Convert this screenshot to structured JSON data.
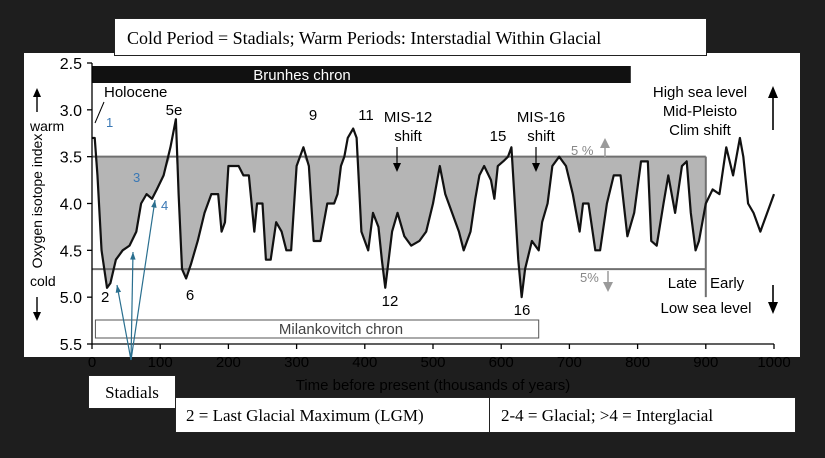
{
  "callouts": {
    "title": "Cold Period = Stadials; Warm Periods: Interstadial Within Glacial",
    "stadials": "Stadials",
    "lgm": "2 = Last Glacial Maximum (LGM)",
    "glacial": "2-4 = Glacial; >4 = Interglacial"
  },
  "colors": {
    "background": "#1e1e1e",
    "plot": "#ffffff",
    "curve": "#111111",
    "fill": "#b5b5b5",
    "band_bar": "#111111",
    "arrow_blue": "#2a6f8f",
    "arrow_gray": "#9a9a9a",
    "stage_blue": "#3a78b5"
  },
  "chart_data": {
    "type": "line",
    "xlabel": "Time before present (thousands of years)",
    "ylabel": "Oxygen isotope index",
    "ylabel_warm": "warm",
    "ylabel_cold": "cold",
    "xlim": [
      0,
      1000
    ],
    "ylim": [
      5.5,
      2.5
    ],
    "y_inverted": true,
    "x_ticks": [
      0,
      100,
      200,
      300,
      400,
      500,
      600,
      700,
      800,
      900,
      1000
    ],
    "y_ticks": [
      "2.5",
      "3.0",
      "3.5",
      "4.0",
      "4.5",
      "5.0",
      "5.5"
    ],
    "y_tick_values": [
      2.5,
      3.0,
      3.5,
      4.0,
      4.5,
      5.0,
      5.5
    ],
    "threshold_upper": 3.5,
    "threshold_lower": 4.7,
    "shaded_range_x": [
      0,
      900
    ],
    "brunhes": {
      "label": "Brunhes chron",
      "x": [
        0,
        790
      ]
    },
    "milankovitch": {
      "label": "Milankovitch chron",
      "x": [
        5,
        655
      ]
    },
    "series": [
      {
        "x": [
          0,
          4,
          8,
          14,
          22,
          27,
          35,
          45,
          55,
          65,
          72,
          80,
          88,
          95,
          105,
          115,
          123,
          127,
          132,
          138,
          145,
          155,
          165,
          175,
          185,
          190,
          195,
          200,
          205,
          215,
          222,
          230,
          238,
          242,
          250,
          255,
          262,
          270,
          278,
          285,
          292,
          300,
          305,
          310,
          318,
          325,
          335,
          345,
          355,
          360,
          365,
          370,
          375,
          383,
          388,
          395,
          405,
          412,
          420,
          425,
          430,
          435,
          440,
          448,
          458,
          468,
          480,
          490,
          500,
          510,
          518,
          528,
          538,
          545,
          555,
          562,
          568,
          575,
          585,
          590,
          595,
          603,
          610,
          615,
          620,
          625,
          630,
          635,
          645,
          655,
          660,
          668,
          675,
          685,
          695,
          705,
          715,
          720,
          728,
          738,
          745,
          755,
          765,
          775,
          785,
          795,
          805,
          815,
          820,
          828,
          838,
          845,
          855,
          865,
          872,
          878,
          885,
          890,
          900,
          910,
          920,
          930,
          940,
          950,
          955,
          962,
          970,
          980,
          990,
          1000
        ],
        "y": [
          3.3,
          3.3,
          3.7,
          4.5,
          4.9,
          4.85,
          4.6,
          4.5,
          4.45,
          4.3,
          4.0,
          3.9,
          3.95,
          3.85,
          3.7,
          3.4,
          3.1,
          3.9,
          4.7,
          4.8,
          4.65,
          4.4,
          4.1,
          3.9,
          3.9,
          4.3,
          4.2,
          3.6,
          3.6,
          3.6,
          3.7,
          3.7,
          4.3,
          4.0,
          4.0,
          4.6,
          4.6,
          4.2,
          4.3,
          4.5,
          4.5,
          3.6,
          3.5,
          3.4,
          3.6,
          4.4,
          4.4,
          4.0,
          4.0,
          3.9,
          3.6,
          3.5,
          3.3,
          3.2,
          3.3,
          4.3,
          4.5,
          4.1,
          4.25,
          4.6,
          4.9,
          4.6,
          4.3,
          4.1,
          4.35,
          4.45,
          4.4,
          4.3,
          4.0,
          3.6,
          3.9,
          4.1,
          4.3,
          4.5,
          4.3,
          3.95,
          3.7,
          3.6,
          3.75,
          3.95,
          3.6,
          3.55,
          3.5,
          3.4,
          4.0,
          4.6,
          5.0,
          4.7,
          4.4,
          4.5,
          4.2,
          4.0,
          3.6,
          3.5,
          3.6,
          3.9,
          4.3,
          4.0,
          4.0,
          4.5,
          4.5,
          4.0,
          3.7,
          3.7,
          4.35,
          4.1,
          3.55,
          3.55,
          4.4,
          4.45,
          4.0,
          3.7,
          4.1,
          3.6,
          3.55,
          4.1,
          4.5,
          4.4,
          4.0,
          3.85,
          3.9,
          3.4,
          3.7,
          3.3,
          3.5,
          4.0,
          4.1,
          4.3,
          4.1,
          3.9
        ]
      }
    ],
    "annotations": {
      "holocene": "Holocene",
      "s1": "1",
      "s2": "2",
      "s3": "3",
      "s4": "4",
      "s5e": "5e",
      "s6": "6",
      "s9": "9",
      "s11": "11",
      "s12": "12",
      "s15": "15",
      "s16": "16",
      "mis12": "MIS-12",
      "mis12_shift": "shift",
      "mis16": "MIS-16",
      "mis16_shift": "shift",
      "pct_upper": "5 %",
      "pct_lower": "5%",
      "high_sea": "High sea level",
      "mid_pleisto": "Mid-Pleisto",
      "clim_shift": "Clim shift",
      "late": "Late",
      "early": "Early",
      "low_sea": "Low sea level"
    }
  }
}
